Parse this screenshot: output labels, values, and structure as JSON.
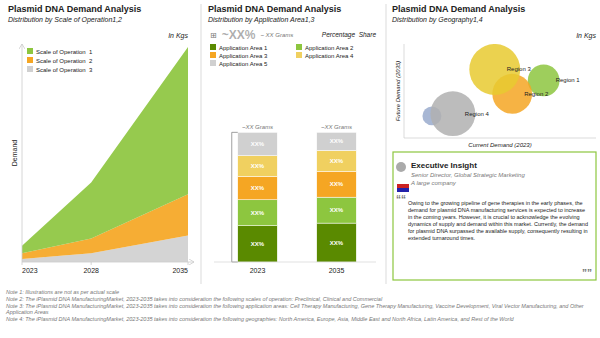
{
  "chart_data": [
    {
      "type": "area",
      "stacked": true,
      "title": "Plasmid DNA Demand Analysis",
      "subtitle": "Distribution by Scale of Operation1,2",
      "y_label": "Demand",
      "annotations": [
        "In Kgs"
      ],
      "x": [
        2023,
        2028,
        2035
      ],
      "series": [
        {
          "name": "Scale of Operation  1",
          "color": "#8dc63f",
          "values": [
            0.05,
            0.38,
            1.0
          ]
        },
        {
          "name": "Scale of Operation  2",
          "color": "#f5a623",
          "values": [
            0.04,
            0.1,
            0.28
          ]
        },
        {
          "name": "Scale of Operation  3",
          "color": "#d0d0d0",
          "values": [
            0.02,
            0.06,
            0.18
          ]
        }
      ],
      "xlim": [
        2023,
        2035
      ],
      "xticks": [
        2023,
        2028,
        2035
      ],
      "ylim": [
        0,
        1.48
      ],
      "tick_labels": "x",
      "grid": false,
      "legend": "upper-left"
    },
    {
      "type": "bar",
      "stacked": true,
      "title": "Plasmid DNA Demand Analysis",
      "subtitle": "Distribution by Application Area1,3",
      "annotations": [
        "Percentage  Share",
        "⊞",
        "~XX%",
        "~ XX Grams"
      ],
      "categories": [
        "2023",
        "2035"
      ],
      "series": [
        {
          "name": "Application Area 1",
          "color": "#5a8a00",
          "values": [
            0.28,
            0.3
          ],
          "value_labels": [
            "XX%",
            "XX%"
          ]
        },
        {
          "name": "Application Area 2",
          "color": "#8dc63f",
          "values": [
            0.2,
            0.2
          ],
          "value_labels": [
            "XX%",
            "XX%"
          ]
        },
        {
          "name": "Application Area 3",
          "color": "#f5a623",
          "values": [
            0.18,
            0.2
          ],
          "value_labels": [
            "XX%",
            "XX%"
          ]
        },
        {
          "name": "Application Area 4",
          "color": "#f0d060",
          "values": [
            0.16,
            0.16
          ],
          "value_labels": [
            "XX%",
            "XX%"
          ]
        },
        {
          "name": "Application Area 5",
          "color": "#d0d0d0",
          "values": [
            0.18,
            0.14
          ],
          "value_labels": [
            "XX%",
            "XX%"
          ]
        }
      ],
      "total_labels": [
        "~XX Grams",
        "~XX Grams"
      ],
      "ylim": [
        0,
        1.45
      ],
      "data_labels": true,
      "tick_labels": "x",
      "grid": false,
      "legend": "upper-left"
    },
    {
      "type": "bubble",
      "title": "Plasmid DNA Demand Analysis",
      "subtitle": "Distribution by Geography1,4",
      "x_label": "Current Demand (2023)",
      "y_label": "Future Demand (2035)",
      "annotations": [
        "In Kgs"
      ],
      "labels": [
        "Region 1",
        "Region 2",
        "Region 3",
        "Region 4",
        null
      ],
      "x": [
        0.8,
        0.62,
        0.52,
        0.28,
        0.16
      ],
      "values": [
        0.72,
        0.6,
        0.82,
        0.42,
        0.4
      ],
      "sizes": [
        700,
        1100,
        1800,
        1400,
        250
      ],
      "colors": [
        "#8dc63f",
        "#f5a623",
        "#e8ca30",
        "#b0b0b0",
        "#99aacc"
      ],
      "xlim": [
        0,
        1.1
      ],
      "ylim": [
        0.2,
        1.05
      ],
      "tick_labels": false,
      "grid": false,
      "insight": {
        "title": "Executive Insight",
        "role": "Senior Director, Global Strategic Marketing",
        "company": "A large company",
        "open_quote": "““",
        "text": "Owing to the growing pipeline of gene therapies in the early phases, the demand for plasmid DNA manufacturing services is expected to increase in the coming years. However, it is crucial to acknowledge the evolving dynamics of supply and demand within this market. Currently, the demand for plasmid DNA surpassed the available supply, consequently resulting in extended turnaround times.",
        "close_quote": "””",
        "color": "#8dc63f",
        "colors": [
          "#cc2222",
          "#2222aa"
        ]
      }
    }
  ],
  "notes": [
    "Note 1: Illustrations are not as per actual scale",
    "Note 2: The iPlasmid DNA ManufacturingMarket, 2023-2035 takes into consideration the following scales of operation: Preclinical, Clinical and Commercial",
    "Note 3: The iPlasmid DNA ManufacturingMarket, 2023-2035 takes into consideration the following application areas: Cell Therapy Manufacturing, Gene Therapy Manufacturing, Vaccine Development, Viral Vector Manufacturing, and Other Application Areas",
    "Note 4: The iPlasmid DNA ManufacturingMarket, 2023-2035 takes into consideration the following geographies: North America, Europe, Asia, Middle East and North Africa, Latin America, and Rest of the World"
  ]
}
